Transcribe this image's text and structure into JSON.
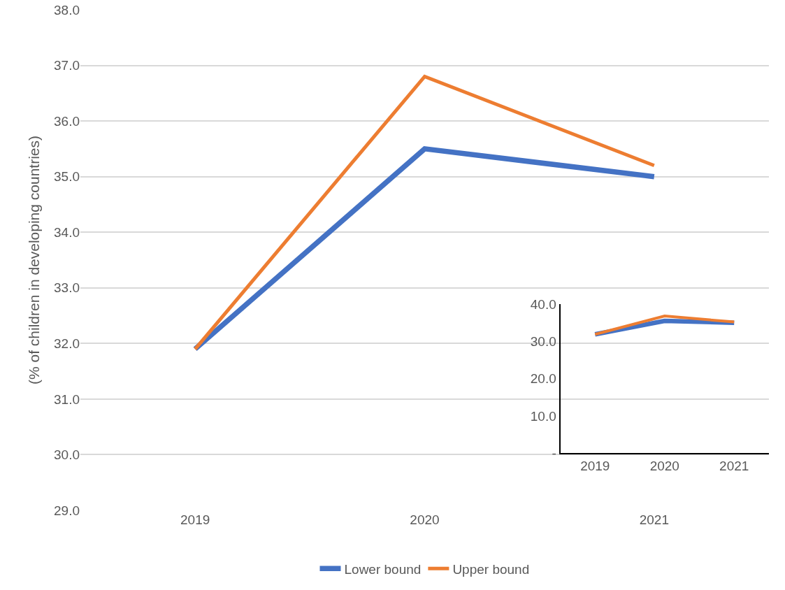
{
  "chart_data": [
    {
      "type": "line",
      "ylabel": "(% of children in developing countries)",
      "categories": [
        "2019",
        "2020",
        "2021"
      ],
      "series": [
        {
          "name": "Lower bound",
          "color": "#4472c4",
          "values": [
            31.9,
            35.5,
            35.0
          ]
        },
        {
          "name": "Upper bound",
          "color": "#ed7d31",
          "values": [
            31.9,
            36.8,
            35.2
          ]
        }
      ],
      "ylim": [
        29,
        38
      ],
      "yticks": [
        {
          "value": 29,
          "label": "29.0"
        },
        {
          "value": 30,
          "label": "30.0"
        },
        {
          "value": 31,
          "label": "31.0"
        },
        {
          "value": 32,
          "label": "32.0"
        },
        {
          "value": 33,
          "label": "33.0"
        },
        {
          "value": 34,
          "label": "34.0"
        },
        {
          "value": 35,
          "label": "35.0"
        },
        {
          "value": 36,
          "label": "36.0"
        },
        {
          "value": 37,
          "label": "37.0"
        },
        {
          "value": 38,
          "label": "38.0"
        }
      ],
      "grid": "y",
      "legend": "bottom",
      "marker": "none",
      "line_style": "solid"
    },
    {
      "type": "line",
      "categories": [
        "2019",
        "2020",
        "2021"
      ],
      "series": [
        {
          "color": "#4472c4",
          "values": [
            31.9,
            35.5,
            35.0
          ]
        },
        {
          "color": "#ed7d31",
          "values": [
            31.9,
            36.8,
            35.2
          ]
        }
      ],
      "ylim": [
        0,
        40
      ],
      "yticks": [
        {
          "value": 0,
          "label": "-"
        },
        {
          "value": 10,
          "label": "10.0"
        },
        {
          "value": 20,
          "label": "20.0"
        },
        {
          "value": 30,
          "label": "30.0"
        },
        {
          "value": 40,
          "label": "40.0"
        }
      ],
      "marker": "none",
      "line_style": "solid"
    }
  ]
}
